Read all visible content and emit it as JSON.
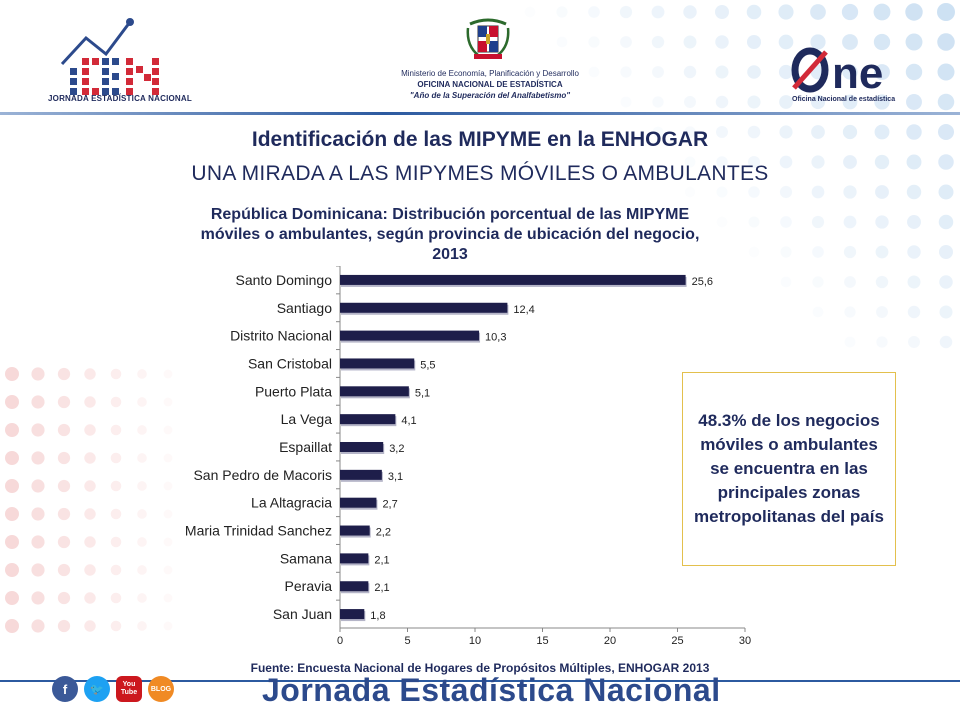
{
  "header": {
    "left_logo_text": "JORNADA ESTADÍSTICA NACIONAL",
    "ministry_line1": "Ministerio de Economía, Planificación y Desarrollo",
    "ministry_line2": "OFICINA NACIONAL DE ESTADÍSTICA",
    "ministry_line3": "\"Año de la Superación del Analfabetismo\"",
    "one_logo": "ne",
    "one_sub": "Oficina Nacional de estadística"
  },
  "title1": "Identificación de las MIPYME en la ENHOGAR",
  "title2": "UNA MIRADA A LAS MIPYMES MÓVILES O AMBULANTES",
  "callout": "48.3% de los negocios móviles o ambulantes se encuentra en las principales zonas metropolitanas del país",
  "source": "Fuente: Encuesta Nacional de Hogares de Propósitos Múltiples, ENHOGAR 2013",
  "footer": {
    "text": "Jornada Estadística Nacional",
    "icons": [
      "facebook-icon",
      "twitter-icon",
      "youtube-icon",
      "blog-icon"
    ],
    "youtube_label": "You Tube",
    "blog_label": "BLOG"
  },
  "chart_data": {
    "type": "bar",
    "orientation": "horizontal",
    "title": "República Dominicana: Distribución porcentual de las MIPYME móviles o ambulantes, según provincia de ubicación del negocio, 2013",
    "categories": [
      "Santo Domingo",
      "Santiago",
      "Distrito Nacional",
      "San Cristobal",
      "Puerto Plata",
      "La Vega",
      "Espaillat",
      "San Pedro de Macoris",
      "La Altagracia",
      "Maria Trinidad Sanchez",
      "Samana",
      "Peravia",
      "San Juan"
    ],
    "values": [
      25.6,
      12.4,
      10.3,
      5.5,
      5.1,
      4.1,
      3.2,
      3.1,
      2.7,
      2.2,
      2.1,
      2.1,
      1.8
    ],
    "value_labels": [
      "25,6",
      "12,4",
      "10,3",
      "5,5",
      "5,1",
      "4,1",
      "3,2",
      "3,1",
      "2,7",
      "2,2",
      "2,1",
      "2,1",
      "1,8"
    ],
    "xlim": [
      0,
      30
    ],
    "xticks": [
      0,
      5,
      10,
      15,
      20,
      25,
      30
    ],
    "bar_color": "#1e1e4a",
    "grid": false
  }
}
